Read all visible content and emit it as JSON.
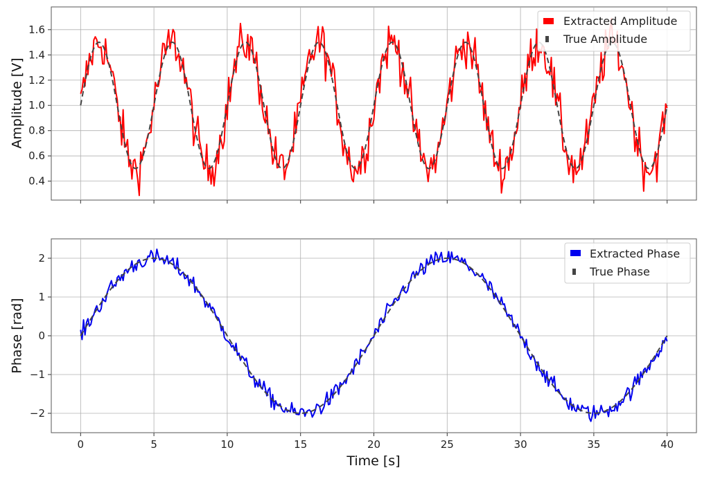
{
  "chart_data": [
    {
      "type": "line",
      "xlabel": "",
      "ylabel": "Amplitude [V]",
      "xlim": [
        -2,
        42
      ],
      "ylim": [
        0.25,
        1.78
      ],
      "xticks": [
        0,
        5,
        10,
        15,
        20,
        25,
        30,
        35,
        40
      ],
      "yticks": [
        0.4,
        0.6,
        0.8,
        1.0,
        1.2,
        1.4,
        1.6
      ],
      "ytick_labels": [
        "0.4",
        "0.6",
        "0.8",
        "1.0",
        "1.2",
        "1.4",
        "1.6"
      ],
      "show_xtick_labels": false,
      "grid": true,
      "legend_position": "top-right",
      "series": [
        {
          "name": "Extracted Amplitude",
          "color": "#ff0000",
          "style": "solid",
          "model": "1 + 0.5*sin(2*pi*0.2*t) + noise",
          "noise_amplitude": 0.09,
          "x_range": [
            0,
            40
          ],
          "sample_count": 400
        },
        {
          "name": "True Amplitude",
          "color": "#444444",
          "style": "dashed",
          "model": "1 + 0.5*sin(2*pi*0.2*t)",
          "x_range": [
            0,
            40
          ]
        }
      ]
    },
    {
      "type": "line",
      "xlabel": "Time [s]",
      "ylabel": "Phase [rad]",
      "xlim": [
        -2,
        42
      ],
      "ylim": [
        -2.5,
        2.5
      ],
      "xticks": [
        0,
        5,
        10,
        15,
        20,
        25,
        30,
        35,
        40
      ],
      "xtick_labels": [
        "0",
        "5",
        "10",
        "15",
        "20",
        "25",
        "30",
        "35",
        "40"
      ],
      "yticks": [
        -2,
        -1,
        0,
        1,
        2
      ],
      "ytick_labels": [
        "−2",
        "−1",
        "0",
        "1",
        "2"
      ],
      "show_xtick_labels": true,
      "grid": true,
      "legend_position": "top-right",
      "series": [
        {
          "name": "Extracted Phase",
          "color": "#0000ee",
          "style": "solid",
          "model": "2*sin(2*pi*0.05*t) + noise",
          "noise_amplitude": 0.11,
          "x_range": [
            0,
            40
          ],
          "sample_count": 400
        },
        {
          "name": "True Phase",
          "color": "#444444",
          "style": "dashed",
          "model": "2*sin(2*pi*0.05*t)",
          "x_range": [
            0,
            40
          ]
        }
      ]
    }
  ]
}
